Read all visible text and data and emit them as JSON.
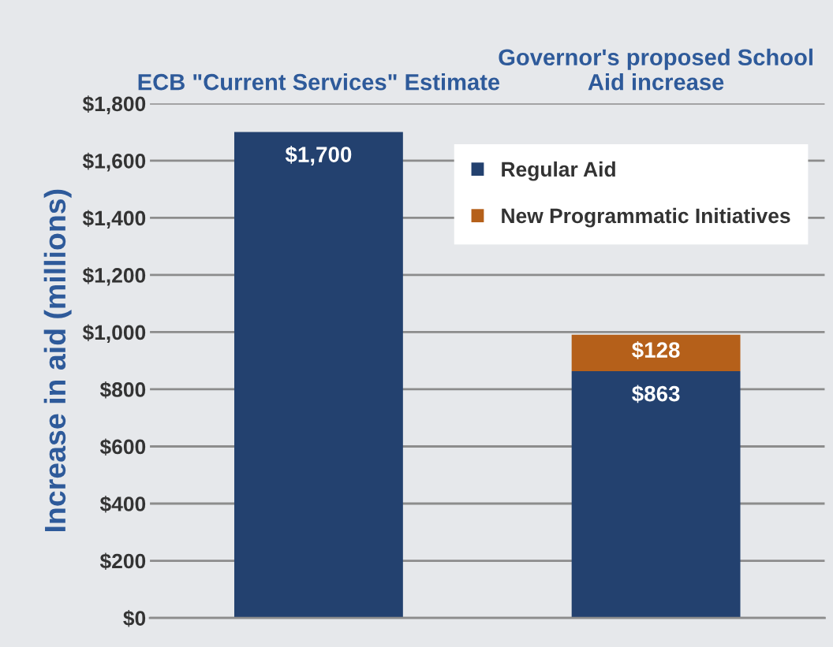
{
  "chart_data": {
    "type": "bar",
    "stacked": true,
    "categories": [
      "ECB \"Current Services\" Estimate",
      "Governor's proposed School Aid increase"
    ],
    "ylabel": "Increase in aid (millions)",
    "series": [
      {
        "name": "Regular Aid",
        "color": "#23416f",
        "values": [
          1700,
          863
        ],
        "value_labels": [
          "$1,700",
          "$863"
        ]
      },
      {
        "name": "New Programmatic Initiatives",
        "color": "#b5601a",
        "values": [
          null,
          128
        ],
        "value_labels": [
          null,
          "$128"
        ]
      }
    ],
    "ylim": [
      0,
      1800
    ],
    "yticks": [
      {
        "value": 0,
        "label": "$0"
      },
      {
        "value": 200,
        "label": "$200"
      },
      {
        "value": 400,
        "label": "$400"
      },
      {
        "value": 600,
        "label": "$600"
      },
      {
        "value": 800,
        "label": "$800"
      },
      {
        "value": 1000,
        "label": "$1,000"
      },
      {
        "value": 1200,
        "label": "$1,200"
      },
      {
        "value": 1400,
        "label": "$1,400"
      },
      {
        "value": 1600,
        "label": "$1,600"
      },
      {
        "value": 1800,
        "label": "$1,800"
      }
    ],
    "grid": "y",
    "legend": "top right"
  }
}
